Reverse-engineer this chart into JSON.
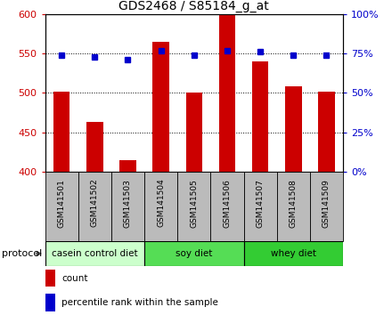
{
  "title": "GDS2468 / S85184_g_at",
  "samples": [
    "GSM141501",
    "GSM141502",
    "GSM141503",
    "GSM141504",
    "GSM141505",
    "GSM141506",
    "GSM141507",
    "GSM141508",
    "GSM141509"
  ],
  "counts": [
    502,
    463,
    415,
    565,
    500,
    600,
    540,
    508,
    502
  ],
  "percentiles": [
    74,
    73,
    71,
    77,
    74,
    77,
    76,
    74,
    74
  ],
  "ylim_left": [
    400,
    600
  ],
  "ylim_right": [
    0,
    100
  ],
  "yticks_left": [
    400,
    450,
    500,
    550,
    600
  ],
  "yticks_right": [
    0,
    25,
    50,
    75,
    100
  ],
  "bar_color": "#cc0000",
  "dot_color": "#0000cc",
  "protocol_groups": [
    {
      "label": "casein control diet",
      "start": 0,
      "end": 3,
      "color": "#ccffcc"
    },
    {
      "label": "soy diet",
      "start": 3,
      "end": 6,
      "color": "#55dd55"
    },
    {
      "label": "whey diet",
      "start": 6,
      "end": 9,
      "color": "#33cc33"
    }
  ],
  "protocol_label": "protocol",
  "legend_count_label": "count",
  "legend_pct_label": "percentile rank within the sample",
  "background_color": "#ffffff",
  "tick_area_color": "#bbbbbb",
  "bar_width": 0.5
}
